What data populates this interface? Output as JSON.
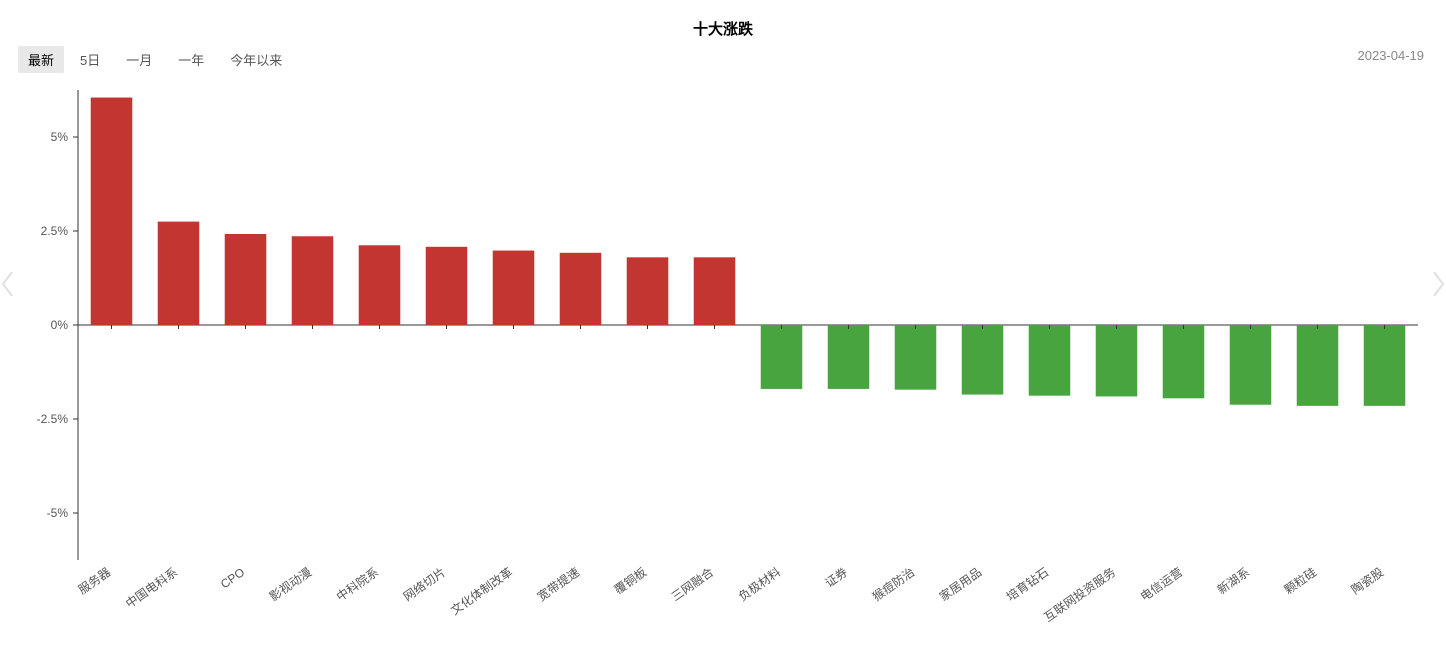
{
  "title": "十大涨跌",
  "date": "2023-04-19",
  "tabs": [
    {
      "label": "最新",
      "active": true
    },
    {
      "label": "5日",
      "active": false
    },
    {
      "label": "一月",
      "active": false
    },
    {
      "label": "一年",
      "active": false
    },
    {
      "label": "今年以来",
      "active": false
    }
  ],
  "chart": {
    "type": "bar",
    "background_color": "#ffffff",
    "axis_line_color": "#333333",
    "tick_label_color": "#555555",
    "tick_fontsize": 12,
    "xlabel_fontsize": 12,
    "xlabel_color": "#555555",
    "xlabel_rotation": -35,
    "positive_color": "#c23531",
    "negative_color": "#48a43f",
    "bar_width_ratio": 0.62,
    "ylim": [
      -6.25,
      6.25
    ],
    "yticks": [
      -5,
      -2.5,
      0,
      2.5,
      5
    ],
    "ytick_labels": [
      "-5%",
      "-2.5%",
      "0%",
      "2.5%",
      "5%"
    ],
    "categories": [
      "服务器",
      "中国电科系",
      "CPO",
      "影视动漫",
      "中科院系",
      "网络切片",
      "文化体制改革",
      "宽带提速",
      "覆铜板",
      "三网融合",
      "负极材料",
      "证券",
      "猴痘防治",
      "家居用品",
      "培育钻石",
      "互联网投资服务",
      "电信运营",
      "新湖系",
      "颗粒硅",
      "陶瓷股"
    ],
    "values": [
      6.05,
      2.75,
      2.42,
      2.36,
      2.12,
      2.08,
      1.98,
      1.92,
      1.8,
      1.8,
      -1.7,
      -1.7,
      -1.72,
      -1.85,
      -1.88,
      -1.9,
      -1.95,
      -2.12,
      -2.15,
      -2.15
    ]
  }
}
